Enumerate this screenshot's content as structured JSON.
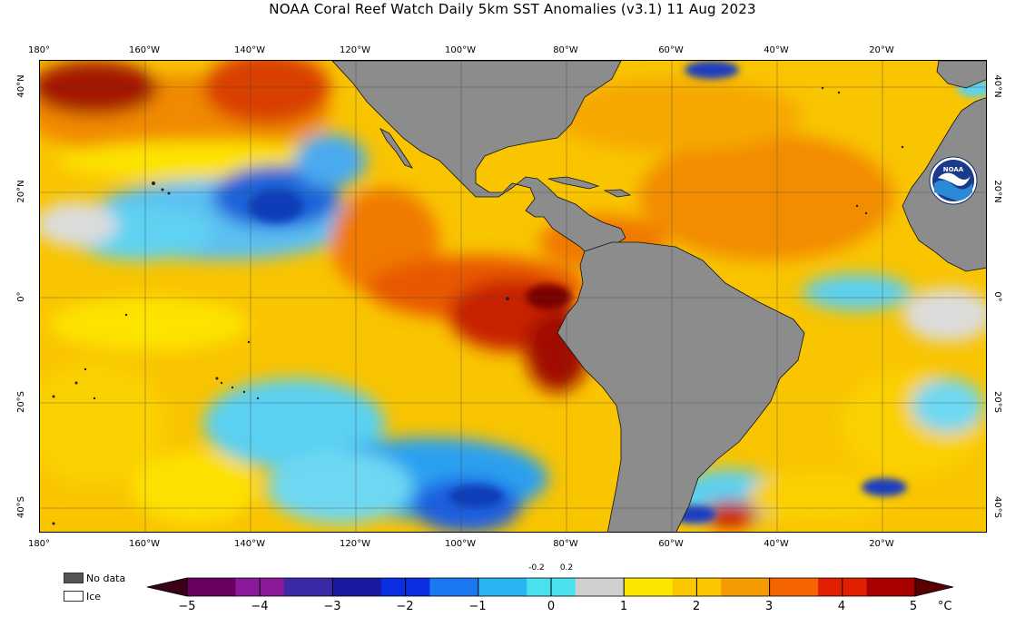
{
  "title": "NOAA Coral Reef Watch Daily 5km SST Anomalies  (v3.1)   11 Aug 2023",
  "lon_labels_top": [
    "180°",
    "160°W",
    "140°W",
    "120°W",
    "100°W",
    "80°W",
    "60°W",
    "40°W",
    "20°W"
  ],
  "lon_labels_bottom": [
    "180°",
    "160°W",
    "140°W",
    "120°W",
    "100°W",
    "80°W",
    "60°W",
    "40°W",
    "20°W"
  ],
  "lat_labels_left": [
    "40°N",
    "20°N",
    "0°",
    "20°S",
    "40°S"
  ],
  "lat_labels_right": [
    "40°N",
    "20°N",
    "0°",
    "20°S",
    "40°S"
  ],
  "legend": {
    "no_data_label": "No data",
    "ice_label": "Ice",
    "no_data_color": "#555555",
    "ice_color": "#ffffff"
  },
  "colorbar": {
    "ticks": [
      "−5",
      "−4",
      "−3",
      "−2",
      "−1",
      "0",
      "1",
      "2",
      "3",
      "4",
      "5"
    ],
    "inner_ticks": [
      "-0.2",
      "0.2"
    ],
    "unit": "°C",
    "colors": [
      "#3a001a",
      "#6a0060",
      "#8a1a9a",
      "#3a2aa8",
      "#1a1aa0",
      "#0a2ee0",
      "#1a78f0",
      "#2ab4f4",
      "#4ae0ee",
      "#cfcfcf",
      "#fbe600",
      "#fbc800",
      "#f59a00",
      "#f46400",
      "#e02000",
      "#a80000",
      "#5a0000"
    ]
  },
  "map_colors": {
    "land": "#8c8c8c",
    "ocean_warm": "#f7b500",
    "ocean_mild": "#fde100",
    "hot": "#e85000",
    "very_hot": "#b01a00",
    "cool": "#3aa8f0",
    "cold": "#1a5ee0",
    "neutral": "#d6d6d6"
  },
  "logo": "noaa-logo-icon"
}
